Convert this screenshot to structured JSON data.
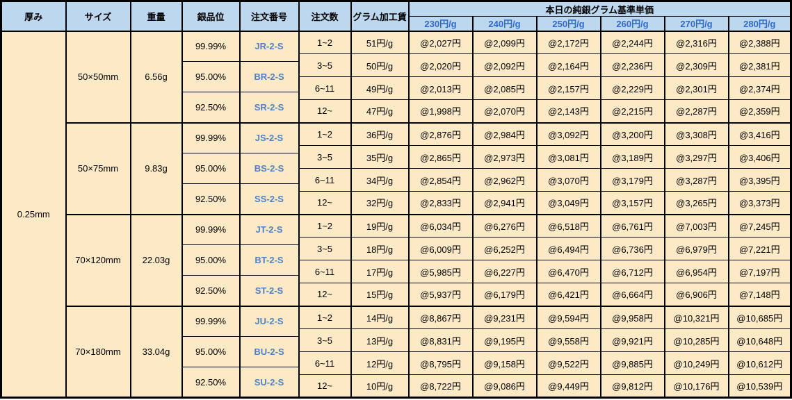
{
  "table": {
    "colors": {
      "header_bg": "#BDD7EE",
      "cell_bg": "#FCE9C6",
      "border": "#000000",
      "subheader_text": "#2E6AC8",
      "order_number_text": "#4F81C7"
    },
    "headers": {
      "thickness": "厚み",
      "size": "サイズ",
      "weight": "重量",
      "purity": "銀品位",
      "order_number": "注文番号",
      "order_qty": "注文数",
      "gram_fee": "グラム加工賃",
      "base_price_group": "本日の純銀グラム基準単価",
      "base_prices": [
        "230円/g",
        "240円/g",
        "250円/g",
        "260円/g",
        "270円/g",
        "280円/g"
      ]
    },
    "thickness": "0.25mm",
    "groups": [
      {
        "size": "50×50mm",
        "weight": "6.56g",
        "purities": [
          {
            "purity": "99.99%",
            "order_number": "JR-2-S"
          },
          {
            "purity": "95.00%",
            "order_number": "BR-2-S"
          },
          {
            "purity": "92.50%",
            "order_number": "SR-2-S"
          }
        ],
        "rows": [
          {
            "qty": "1~2",
            "fee": "51円/g",
            "prices": [
              "@2,027円",
              "@2,099円",
              "@2,172円",
              "@2,244円",
              "@2,316円",
              "@2,388円"
            ]
          },
          {
            "qty": "3~5",
            "fee": "50円/g",
            "prices": [
              "@2,020円",
              "@2,092円",
              "@2,164円",
              "@2,236円",
              "@2,309円",
              "@2,381円"
            ]
          },
          {
            "qty": "6~11",
            "fee": "49円/g",
            "prices": [
              "@2,013円",
              "@2,085円",
              "@2,157円",
              "@2,229円",
              "@2,301円",
              "@2,374円"
            ]
          },
          {
            "qty": "12~",
            "fee": "47円/g",
            "prices": [
              "@1,998円",
              "@2,070円",
              "@2,143円",
              "@2,215円",
              "@2,287円",
              "@2,359円"
            ]
          }
        ]
      },
      {
        "size": "50×75mm",
        "weight": "9.83g",
        "purities": [
          {
            "purity": "99.99%",
            "order_number": "JS-2-S"
          },
          {
            "purity": "95.00%",
            "order_number": "BS-2-S"
          },
          {
            "purity": "92.50%",
            "order_number": "SS-2-S"
          }
        ],
        "rows": [
          {
            "qty": "1~2",
            "fee": "36円/g",
            "prices": [
              "@2,876円",
              "@2,984円",
              "@3,092円",
              "@3,200円",
              "@3,308円",
              "@3,416円"
            ]
          },
          {
            "qty": "3~5",
            "fee": "35円/g",
            "prices": [
              "@2,865円",
              "@2,973円",
              "@3,081円",
              "@3,189円",
              "@3,297円",
              "@3,406円"
            ]
          },
          {
            "qty": "6~11",
            "fee": "34円/g",
            "prices": [
              "@2,854円",
              "@2,962円",
              "@3,070円",
              "@3,179円",
              "@3,287円",
              "@3,395円"
            ]
          },
          {
            "qty": "12~",
            "fee": "32円/g",
            "prices": [
              "@2,833円",
              "@2,941円",
              "@3,049円",
              "@3,157円",
              "@3,265円",
              "@3,373円"
            ]
          }
        ]
      },
      {
        "size": "70×120mm",
        "weight": "22.03g",
        "purities": [
          {
            "purity": "99.99%",
            "order_number": "JT-2-S"
          },
          {
            "purity": "95.00%",
            "order_number": "BT-2-S"
          },
          {
            "purity": "92.50%",
            "order_number": "ST-2-S"
          }
        ],
        "rows": [
          {
            "qty": "1~2",
            "fee": "19円/g",
            "prices": [
              "@6,034円",
              "@6,276円",
              "@6,518円",
              "@6,761円",
              "@7,003円",
              "@7,245円"
            ]
          },
          {
            "qty": "3~5",
            "fee": "18円/g",
            "prices": [
              "@6,009円",
              "@6,252円",
              "@6,494円",
              "@6,736円",
              "@6,979円",
              "@7,221円"
            ]
          },
          {
            "qty": "6~11",
            "fee": "17円/g",
            "prices": [
              "@5,985円",
              "@6,227円",
              "@6,470円",
              "@6,712円",
              "@6,954円",
              "@7,197円"
            ]
          },
          {
            "qty": "12~",
            "fee": "15円/g",
            "prices": [
              "@5,937円",
              "@6,179円",
              "@6,421円",
              "@6,664円",
              "@6,906円",
              "@7,148円"
            ]
          }
        ]
      },
      {
        "size": "70×180mm",
        "weight": "33.04g",
        "purities": [
          {
            "purity": "99.99%",
            "order_number": "JU-2-S"
          },
          {
            "purity": "95.00%",
            "order_number": "BU-2-S"
          },
          {
            "purity": "92.50%",
            "order_number": "SU-2-S"
          }
        ],
        "rows": [
          {
            "qty": "1~2",
            "fee": "14円/g",
            "prices": [
              "@8,867円",
              "@9,231円",
              "@9,594円",
              "@9,958円",
              "@10,321円",
              "@10,685円"
            ]
          },
          {
            "qty": "3~5",
            "fee": "13円/g",
            "prices": [
              "@8,831円",
              "@9,195円",
              "@9,558円",
              "@9,921円",
              "@10,285円",
              "@10,648円"
            ]
          },
          {
            "qty": "6~11",
            "fee": "12円/g",
            "prices": [
              "@8,795円",
              "@9,158円",
              "@9,522円",
              "@9,885円",
              "@10,249円",
              "@10,612円"
            ]
          },
          {
            "qty": "12~",
            "fee": "10円/g",
            "prices": [
              "@8,722円",
              "@9,086円",
              "@9,449円",
              "@9,812円",
              "@10,176円",
              "@10,539円"
            ]
          }
        ]
      }
    ]
  }
}
